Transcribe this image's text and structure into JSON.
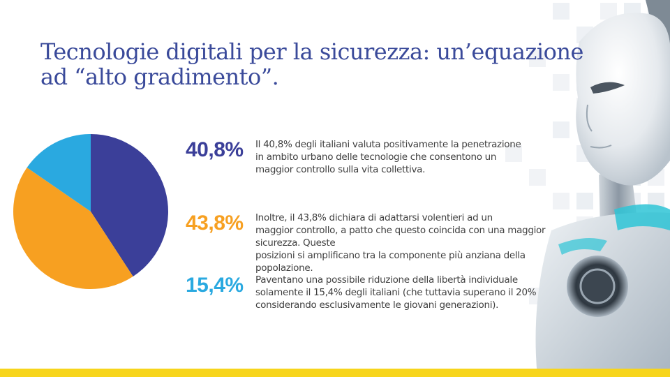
{
  "title": {
    "line1": "Tecnologie digitali per la sicurezza: un’equazione",
    "line2": "ad “alto gradimento”."
  },
  "colors": {
    "title": "#3a4a9a",
    "series_blue": "#3b3f99",
    "series_orange": "#f7a021",
    "series_cyan": "#2aa9e0",
    "accent_bar": "#f7d51c"
  },
  "stats": [
    {
      "value": "40,8%",
      "lines": [
        "Il 40,8% degli italiani valuta positivamente la penetrazione",
        "in ambito urbano delle tecnologie che consentono un",
        "maggior controllo sulla vita collettiva."
      ]
    },
    {
      "value": "43,8%",
      "lines": [
        "Inoltre, il 43,8% dichiara di adattarsi volentieri ad un",
        "maggior controllo, a patto che questo coincida con una maggior sicurezza. Queste",
        "posizioni si amplificano tra la componente più anziana della popolazione."
      ]
    },
    {
      "value": "15,4%",
      "lines": [
        "Paventano una possibile riduzione della libertà individuale",
        "solamente il 15,4% degli italiani (che tuttavia superano il 20%",
        "considerando esclusivamente le giovani generazioni)."
      ]
    }
  ],
  "chart_data": {
    "type": "pie",
    "categories": [
      "40,8%",
      "43,8%",
      "15,4%"
    ],
    "values": [
      40.8,
      43.8,
      15.4
    ],
    "colors": [
      "#3b3f99",
      "#f7a021",
      "#2aa9e0"
    ],
    "start_angle": "top",
    "direction": "clockwise"
  }
}
